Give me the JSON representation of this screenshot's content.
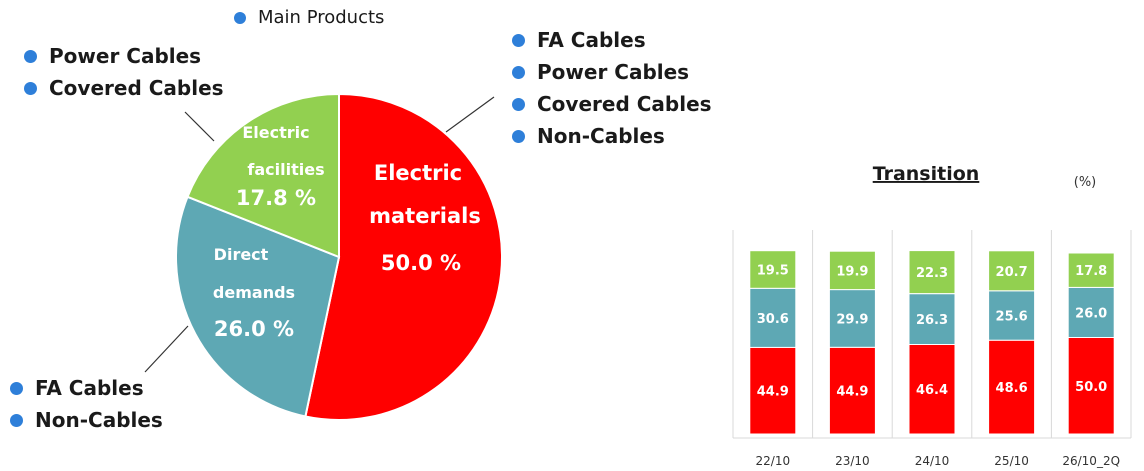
{
  "colors": {
    "bullet": "#2e7fd9",
    "electric_materials": "#ff0000",
    "direct_demands": "#5ea8b4",
    "electric_facilities": "#92d050",
    "grid": "#d9d9d9"
  },
  "main_products_label": "Main Products",
  "lists": {
    "electric_facilities": [
      "Power Cables",
      "Covered Cables"
    ],
    "electric_materials": [
      "FA Cables",
      "Power Cables",
      "Covered Cables",
      "Non-Cables"
    ],
    "direct_demands": [
      "FA Cables",
      "Non-Cables"
    ]
  },
  "chart_data": [
    {
      "type": "pie",
      "slices": [
        {
          "label_lines": [
            "Electric",
            "materials"
          ],
          "value": 50.0,
          "value_text": "50.0 %",
          "color": "#ff0000"
        },
        {
          "label_lines": [
            "Direct",
            "demands"
          ],
          "value": 26.0,
          "value_text": "26.0 %",
          "color": "#5ea8b4"
        },
        {
          "label_lines": [
            "Electric",
            "facilities"
          ],
          "value": 17.8,
          "value_text": "17.8 %",
          "color": "#92d050"
        }
      ]
    },
    {
      "type": "bar",
      "stacked": true,
      "title": "Transition",
      "unit": "(%)",
      "categories": [
        "22/10",
        "23/10",
        "24/10",
        "25/10",
        "26/10_2Q"
      ],
      "series": [
        {
          "values": [
            44.9,
            44.9,
            46.4,
            48.6,
            50.0
          ],
          "color": "#ff0000"
        },
        {
          "values": [
            30.6,
            29.9,
            26.3,
            25.6,
            26.0
          ],
          "color": "#5ea8b4"
        },
        {
          "values": [
            19.5,
            19.9,
            22.3,
            20.7,
            17.8
          ],
          "color": "#92d050"
        }
      ]
    }
  ]
}
